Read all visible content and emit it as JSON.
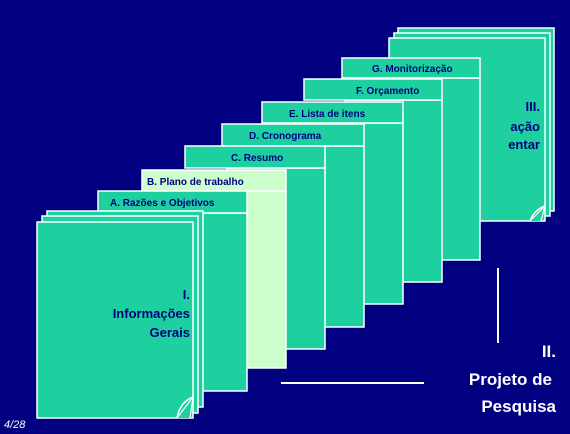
{
  "slide": {
    "page_number": "4/28",
    "colors": {
      "background": "#000080",
      "folder": "#1ecf9f",
      "folder_highlight": "#ccffcc",
      "outline": "#ffffff",
      "text_dark": "#000080",
      "text_light": "#ffffff"
    }
  },
  "sections": {
    "section1": {
      "roman": "I.",
      "line1": "Informações",
      "line2": "Gerais"
    },
    "section2": {
      "roman": "II.",
      "line1": "Projeto de",
      "line2": "Pesquisa"
    },
    "section3": {
      "roman": "III.",
      "line1": "ação",
      "line2": "entar"
    }
  },
  "tabs": [
    {
      "label": "A. Razões e Objetivos",
      "highlighted": false
    },
    {
      "label": "B. Plano de trabalho",
      "highlighted": true
    },
    {
      "label": "C. Resumo",
      "highlighted": false
    },
    {
      "label": "D. Cronograma",
      "highlighted": false
    },
    {
      "label": "E. Lista de itens",
      "highlighted": false
    },
    {
      "label": "F. Orçamento",
      "highlighted": false
    },
    {
      "label": "G. Monitorização",
      "highlighted": false
    }
  ]
}
